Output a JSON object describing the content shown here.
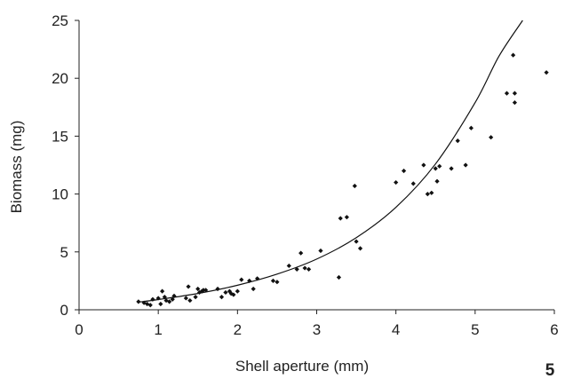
{
  "chart_data": {
    "type": "scatter",
    "xlabel": "Shell aperture (mm)",
    "ylabel": "Biomass (mg)",
    "xlim": [
      0,
      6
    ],
    "ylim": [
      0,
      25
    ],
    "x_ticks": [
      0,
      1,
      2,
      3,
      4,
      5,
      6
    ],
    "y_ticks": [
      0,
      5,
      10,
      15,
      20,
      25
    ],
    "grid": false,
    "legend": "none",
    "marker_color": "#111111",
    "line_color": "#111111",
    "series": [
      {
        "kind": "points",
        "points": [
          [
            0.75,
            0.7
          ],
          [
            0.82,
            0.6
          ],
          [
            0.86,
            0.5
          ],
          [
            0.9,
            0.4
          ],
          [
            0.93,
            0.9
          ],
          [
            1.0,
            1.0
          ],
          [
            1.03,
            0.5
          ],
          [
            1.05,
            1.6
          ],
          [
            1.08,
            1.1
          ],
          [
            1.1,
            0.8
          ],
          [
            1.14,
            0.7
          ],
          [
            1.18,
            0.9
          ],
          [
            1.2,
            1.2
          ],
          [
            1.35,
            1.0
          ],
          [
            1.38,
            2.0
          ],
          [
            1.4,
            0.8
          ],
          [
            1.47,
            1.1
          ],
          [
            1.5,
            1.8
          ],
          [
            1.52,
            1.5
          ],
          [
            1.55,
            1.6
          ],
          [
            1.57,
            1.7
          ],
          [
            1.6,
            1.7
          ],
          [
            1.75,
            1.8
          ],
          [
            1.8,
            1.1
          ],
          [
            1.85,
            1.5
          ],
          [
            1.9,
            1.6
          ],
          [
            1.92,
            1.4
          ],
          [
            1.95,
            1.3
          ],
          [
            2.0,
            1.6
          ],
          [
            2.05,
            2.6
          ],
          [
            2.15,
            2.5
          ],
          [
            2.2,
            1.8
          ],
          [
            2.25,
            2.7
          ],
          [
            2.45,
            2.5
          ],
          [
            2.5,
            2.4
          ],
          [
            2.65,
            3.8
          ],
          [
            2.75,
            3.5
          ],
          [
            2.8,
            4.9
          ],
          [
            2.85,
            3.6
          ],
          [
            2.9,
            3.5
          ],
          [
            3.05,
            5.1
          ],
          [
            3.28,
            2.8
          ],
          [
            3.3,
            7.9
          ],
          [
            3.38,
            8.0
          ],
          [
            3.48,
            10.7
          ],
          [
            3.5,
            5.9
          ],
          [
            3.55,
            5.3
          ],
          [
            4.0,
            11.0
          ],
          [
            4.1,
            12.0
          ],
          [
            4.22,
            10.9
          ],
          [
            4.35,
            12.5
          ],
          [
            4.4,
            10.0
          ],
          [
            4.45,
            10.1
          ],
          [
            4.5,
            12.2
          ],
          [
            4.55,
            12.4
          ],
          [
            4.52,
            11.1
          ],
          [
            4.7,
            12.2
          ],
          [
            4.78,
            14.6
          ],
          [
            4.88,
            12.5
          ],
          [
            4.95,
            15.7
          ],
          [
            5.2,
            14.9
          ],
          [
            5.4,
            18.7
          ],
          [
            5.48,
            22.0
          ],
          [
            5.5,
            18.7
          ],
          [
            5.5,
            17.9
          ],
          [
            5.9,
            20.5
          ]
        ]
      },
      {
        "kind": "fitted-curve",
        "points": [
          [
            0.75,
            0.66
          ],
          [
            1.0,
            0.88
          ],
          [
            1.5,
            1.41
          ],
          [
            2.0,
            2.12
          ],
          [
            2.5,
            3.08
          ],
          [
            3.0,
            4.38
          ],
          [
            3.5,
            6.23
          ],
          [
            4.0,
            8.85
          ],
          [
            4.5,
            12.6
          ],
          [
            5.0,
            17.9
          ],
          [
            5.3,
            21.9
          ],
          [
            5.6,
            25.0
          ]
        ]
      }
    ]
  },
  "corner_label": "5"
}
